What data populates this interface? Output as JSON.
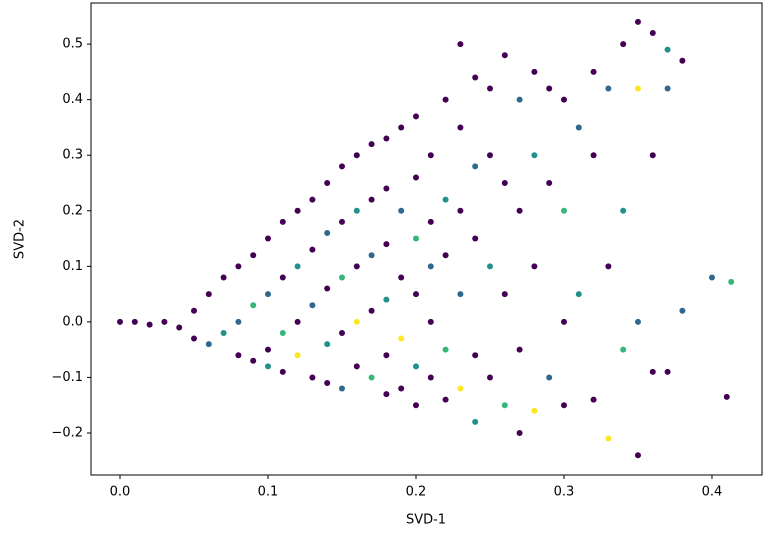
{
  "chart_data": {
    "type": "scatter",
    "xlabel": "SVD-1",
    "ylabel": "SVD-2",
    "xlim": [
      -0.0196,
      0.4338
    ],
    "ylim": [
      -0.2756,
      0.574
    ],
    "xticks": [
      {
        "value": 0,
        "label": "0.0"
      },
      0.1,
      0.2,
      0.3,
      0.4
    ],
    "yticks": [
      {
        "value": -0.2,
        "label": "−0.2"
      },
      {
        "value": -0.1,
        "label": "−0.1"
      },
      {
        "value": 0,
        "label": "0.0"
      },
      0.1,
      0.2,
      0.3,
      0.4,
      0.5
    ],
    "grid": false,
    "x": [
      0.0,
      0.01,
      0.02,
      0.03,
      0.04,
      0.05,
      0.05,
      0.06,
      0.06,
      0.07,
      0.07,
      0.08,
      0.08,
      0.08,
      0.09,
      0.09,
      0.09,
      0.1,
      0.1,
      0.1,
      0.1,
      0.11,
      0.11,
      0.11,
      0.11,
      0.12,
      0.12,
      0.12,
      0.12,
      0.13,
      0.13,
      0.13,
      0.13,
      0.14,
      0.14,
      0.14,
      0.14,
      0.14,
      0.15,
      0.15,
      0.15,
      0.15,
      0.15,
      0.16,
      0.16,
      0.16,
      0.16,
      0.16,
      0.17,
      0.17,
      0.17,
      0.17,
      0.17,
      0.18,
      0.18,
      0.18,
      0.18,
      0.18,
      0.18,
      0.19,
      0.19,
      0.19,
      0.19,
      0.19,
      0.2,
      0.2,
      0.2,
      0.2,
      0.2,
      0.2,
      0.21,
      0.21,
      0.21,
      0.21,
      0.21,
      0.22,
      0.22,
      0.22,
      0.22,
      0.22,
      0.23,
      0.23,
      0.23,
      0.23,
      0.23,
      0.24,
      0.24,
      0.24,
      0.24,
      0.24,
      0.25,
      0.25,
      0.25,
      0.25,
      0.26,
      0.26,
      0.26,
      0.26,
      0.27,
      0.27,
      0.27,
      0.27,
      0.28,
      0.28,
      0.28,
      0.28,
      0.29,
      0.29,
      0.29,
      0.3,
      0.3,
      0.3,
      0.3,
      0.31,
      0.31,
      0.32,
      0.32,
      0.32,
      0.33,
      0.33,
      0.33,
      0.34,
      0.34,
      0.34,
      0.35,
      0.35,
      0.35,
      0.35,
      0.36,
      0.36,
      0.36,
      0.37,
      0.37,
      0.37,
      0.38,
      0.38,
      0.4,
      0.41,
      0.413
    ],
    "values": [
      0.0,
      0.0,
      -0.005,
      0.0,
      -0.01,
      0.02,
      -0.03,
      0.05,
      -0.04,
      0.08,
      -0.02,
      0.1,
      0.0,
      -0.06,
      0.12,
      0.03,
      -0.07,
      0.15,
      0.05,
      -0.05,
      -0.08,
      0.18,
      0.08,
      -0.02,
      -0.09,
      0.2,
      0.1,
      0.0,
      -0.06,
      0.22,
      0.13,
      0.03,
      -0.1,
      0.25,
      0.16,
      0.06,
      -0.04,
      -0.11,
      0.28,
      0.18,
      0.08,
      -0.02,
      -0.12,
      0.3,
      0.2,
      0.1,
      0.0,
      -0.08,
      0.32,
      0.22,
      0.12,
      0.02,
      -0.1,
      0.33,
      0.24,
      0.14,
      0.04,
      -0.06,
      -0.13,
      0.35,
      0.2,
      0.08,
      -0.03,
      -0.12,
      0.37,
      0.26,
      0.15,
      0.05,
      -0.08,
      -0.15,
      0.3,
      0.18,
      0.1,
      0.0,
      -0.1,
      0.4,
      0.22,
      0.12,
      -0.05,
      -0.14,
      0.5,
      0.35,
      0.2,
      0.05,
      -0.12,
      0.44,
      0.28,
      0.15,
      -0.06,
      -0.18,
      0.42,
      0.3,
      0.1,
      -0.1,
      0.48,
      0.25,
      0.05,
      -0.15,
      0.4,
      0.2,
      -0.05,
      -0.2,
      0.45,
      0.3,
      0.1,
      -0.16,
      0.42,
      0.25,
      -0.1,
      0.4,
      0.2,
      0.0,
      -0.15,
      0.35,
      0.05,
      0.45,
      0.3,
      -0.14,
      0.42,
      0.1,
      -0.21,
      0.5,
      0.2,
      -0.05,
      0.54,
      0.42,
      0.0,
      -0.24,
      0.52,
      0.3,
      -0.09,
      0.49,
      0.42,
      -0.09,
      0.47,
      0.02,
      0.08,
      -0.135,
      0.072
    ],
    "colors": [
      "#440154",
      "#440154",
      "#440154",
      "#440154",
      "#440154",
      "#440154",
      "#440154",
      "#440154",
      "#31688e",
      "#440154",
      "#21918c",
      "#440154",
      "#31688e",
      "#440154",
      "#440154",
      "#35b779",
      "#440154",
      "#440154",
      "#31688e",
      "#440154",
      "#21918c",
      "#440154",
      "#440154",
      "#35b779",
      "#440154",
      "#440154",
      "#21918c",
      "#440154",
      "#fde725",
      "#440154",
      "#440154",
      "#31688e",
      "#440154",
      "#440154",
      "#31688e",
      "#440154",
      "#21918c",
      "#440154",
      "#440154",
      "#440154",
      "#35b779",
      "#440154",
      "#31688e",
      "#440154",
      "#21918c",
      "#440154",
      "#fde725",
      "#440154",
      "#440154",
      "#440154",
      "#31688e",
      "#440154",
      "#35b779",
      "#440154",
      "#440154",
      "#440154",
      "#21918c",
      "#440154",
      "#440154",
      "#440154",
      "#31688e",
      "#440154",
      "#fde725",
      "#440154",
      "#440154",
      "#440154",
      "#35b779",
      "#440154",
      "#21918c",
      "#440154",
      "#440154",
      "#440154",
      "#31688e",
      "#440154",
      "#440154",
      "#440154",
      "#21918c",
      "#440154",
      "#35b779",
      "#440154",
      "#440154",
      "#440154",
      "#440154",
      "#31688e",
      "#fde725",
      "#440154",
      "#31688e",
      "#440154",
      "#440154",
      "#21918c",
      "#440154",
      "#440154",
      "#21918c",
      "#440154",
      "#440154",
      "#440154",
      "#440154",
      "#35b779",
      "#31688e",
      "#440154",
      "#440154",
      "#440154",
      "#440154",
      "#21918c",
      "#440154",
      "#fde725",
      "#440154",
      "#440154",
      "#31688e",
      "#440154",
      "#35b779",
      "#440154",
      "#440154",
      "#31688e",
      "#21918c",
      "#440154",
      "#440154",
      "#440154",
      "#31688e",
      "#440154",
      "#fde725",
      "#440154",
      "#21918c",
      "#35b779",
      "#440154",
      "#fde725",
      "#31688e",
      "#440154",
      "#440154",
      "#440154",
      "#440154",
      "#21918c",
      "#31688e",
      "#440154",
      "#440154",
      "#31688e",
      "#31688e",
      "#440154",
      "#35b779"
    ]
  }
}
